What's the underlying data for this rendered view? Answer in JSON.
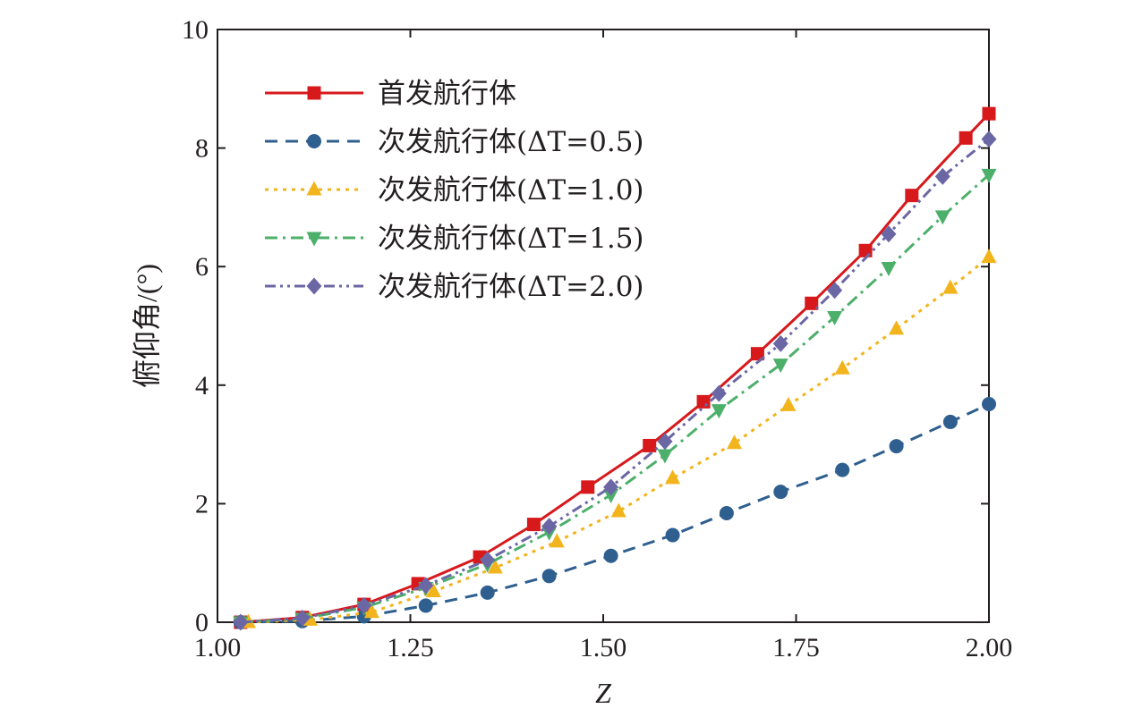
{
  "chart_data": {
    "type": "line",
    "xlabel": "Z",
    "ylabel": "俯仰角/(°)",
    "xlim": [
      1.0,
      2.0
    ],
    "ylim": [
      0,
      10
    ],
    "xticks": [
      "1.00",
      "1.25",
      "1.50",
      "1.75",
      "2.00"
    ],
    "yticks": [
      "0",
      "2",
      "4",
      "6",
      "8",
      "10"
    ],
    "grid": false,
    "legend_position": "top-left",
    "series": [
      {
        "name": "首发航行体",
        "color": "#d7191c",
        "marker": "square",
        "line_style": "solid",
        "x": [
          1.03,
          1.11,
          1.19,
          1.26,
          1.34,
          1.41,
          1.48,
          1.56,
          1.63,
          1.7,
          1.77,
          1.84,
          1.9,
          1.97,
          2.0
        ],
        "y": [
          0.0,
          0.08,
          0.3,
          0.65,
          1.1,
          1.65,
          2.28,
          2.98,
          3.72,
          4.53,
          5.38,
          6.27,
          7.2,
          8.17,
          8.58
        ]
      },
      {
        "name": "次发航行体(ΔT=0.5)",
        "color": "#2f5f8f",
        "marker": "circle",
        "line_style": "dashed",
        "x": [
          1.03,
          1.11,
          1.19,
          1.27,
          1.35,
          1.43,
          1.51,
          1.59,
          1.66,
          1.73,
          1.81,
          1.88,
          1.95,
          2.0
        ],
        "y": [
          0.0,
          0.02,
          0.1,
          0.28,
          0.5,
          0.78,
          1.12,
          1.47,
          1.84,
          2.2,
          2.57,
          2.97,
          3.38,
          3.68
        ]
      },
      {
        "name": "次发航行体(ΔT=1.0)",
        "color": "#f2b41c",
        "marker": "triangle-up",
        "line_style": "dotted",
        "x": [
          1.04,
          1.12,
          1.2,
          1.28,
          1.36,
          1.44,
          1.52,
          1.59,
          1.67,
          1.74,
          1.81,
          1.88,
          1.95,
          2.0
        ],
        "y": [
          0.0,
          0.04,
          0.17,
          0.52,
          0.92,
          1.36,
          1.87,
          2.43,
          3.02,
          3.66,
          4.28,
          4.95,
          5.64,
          6.16
        ]
      },
      {
        "name": "次发航行体(ΔT=1.5)",
        "color": "#4caf6a",
        "marker": "triangle-down",
        "line_style": "dashdot",
        "x": [
          1.03,
          1.11,
          1.19,
          1.27,
          1.35,
          1.43,
          1.51,
          1.58,
          1.65,
          1.73,
          1.8,
          1.87,
          1.94,
          2.0
        ],
        "y": [
          0.0,
          0.06,
          0.25,
          0.58,
          0.98,
          1.52,
          2.15,
          2.82,
          3.58,
          4.35,
          5.15,
          5.98,
          6.85,
          7.55
        ]
      },
      {
        "name": "次发航行体(ΔT=2.0)",
        "color": "#6b67a5",
        "marker": "diamond",
        "line_style": "dashdotdot",
        "x": [
          1.03,
          1.11,
          1.19,
          1.27,
          1.35,
          1.43,
          1.51,
          1.58,
          1.65,
          1.73,
          1.8,
          1.87,
          1.94,
          2.0
        ],
        "y": [
          0.0,
          0.07,
          0.28,
          0.62,
          1.05,
          1.62,
          2.28,
          3.05,
          3.86,
          4.7,
          5.6,
          6.55,
          7.52,
          8.15
        ]
      }
    ]
  }
}
